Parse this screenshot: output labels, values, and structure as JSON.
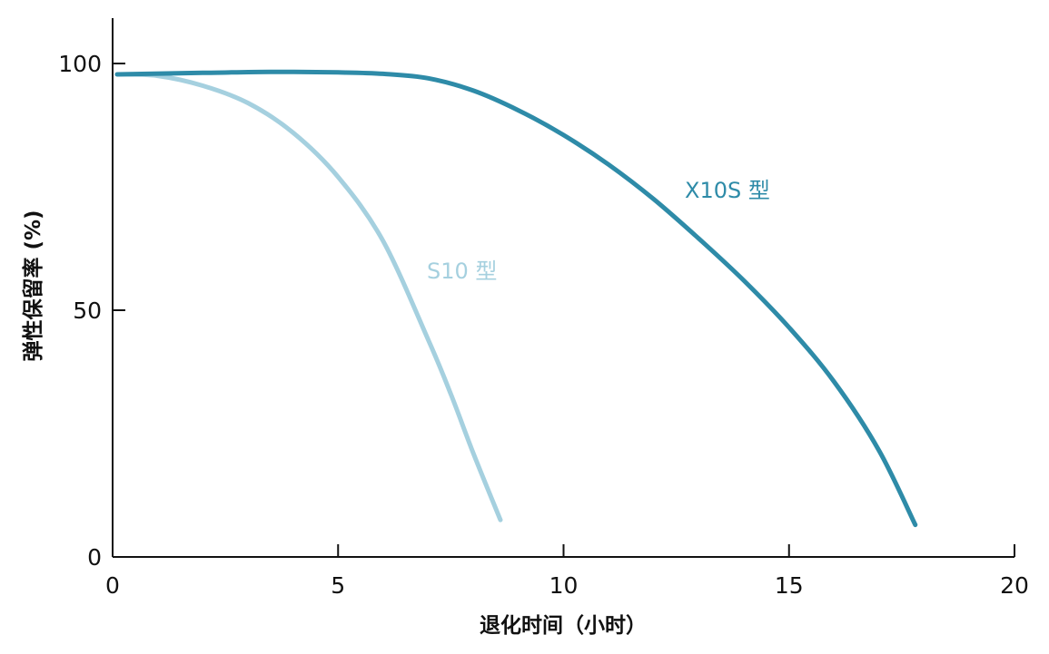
{
  "chart_data": {
    "type": "line",
    "xlabel": "退化时间（小时）",
    "ylabel": "弹性保留率 (%)",
    "xlim": [
      0,
      20
    ],
    "ylim": [
      0,
      100
    ],
    "x_ticks": [
      "0",
      "5",
      "10",
      "15",
      "20"
    ],
    "y_ticks": [
      "0",
      "50",
      "100"
    ],
    "grid": false,
    "series": [
      {
        "name": "S10 型",
        "color": "#a5d0df",
        "x": [
          0.1,
          1,
          2,
          3,
          4,
          5,
          6,
          7,
          7.5,
          8,
          8.6
        ],
        "y": [
          97.8,
          97.5,
          95.5,
          92,
          86,
          77,
          64,
          44,
          33,
          21,
          7.5
        ]
      },
      {
        "name": "X10S 型",
        "color": "#2e8ba8",
        "x": [
          0.1,
          2,
          3.5,
          5,
          6,
          7,
          8,
          9,
          10,
          11,
          12,
          13,
          14,
          15,
          16,
          17,
          17.8
        ],
        "y": [
          97.8,
          98.1,
          98.3,
          98.2,
          97.9,
          97,
          94.5,
          90.5,
          85.5,
          79.5,
          72.5,
          64.5,
          56,
          46.5,
          35.5,
          21.5,
          6.5
        ]
      }
    ]
  }
}
